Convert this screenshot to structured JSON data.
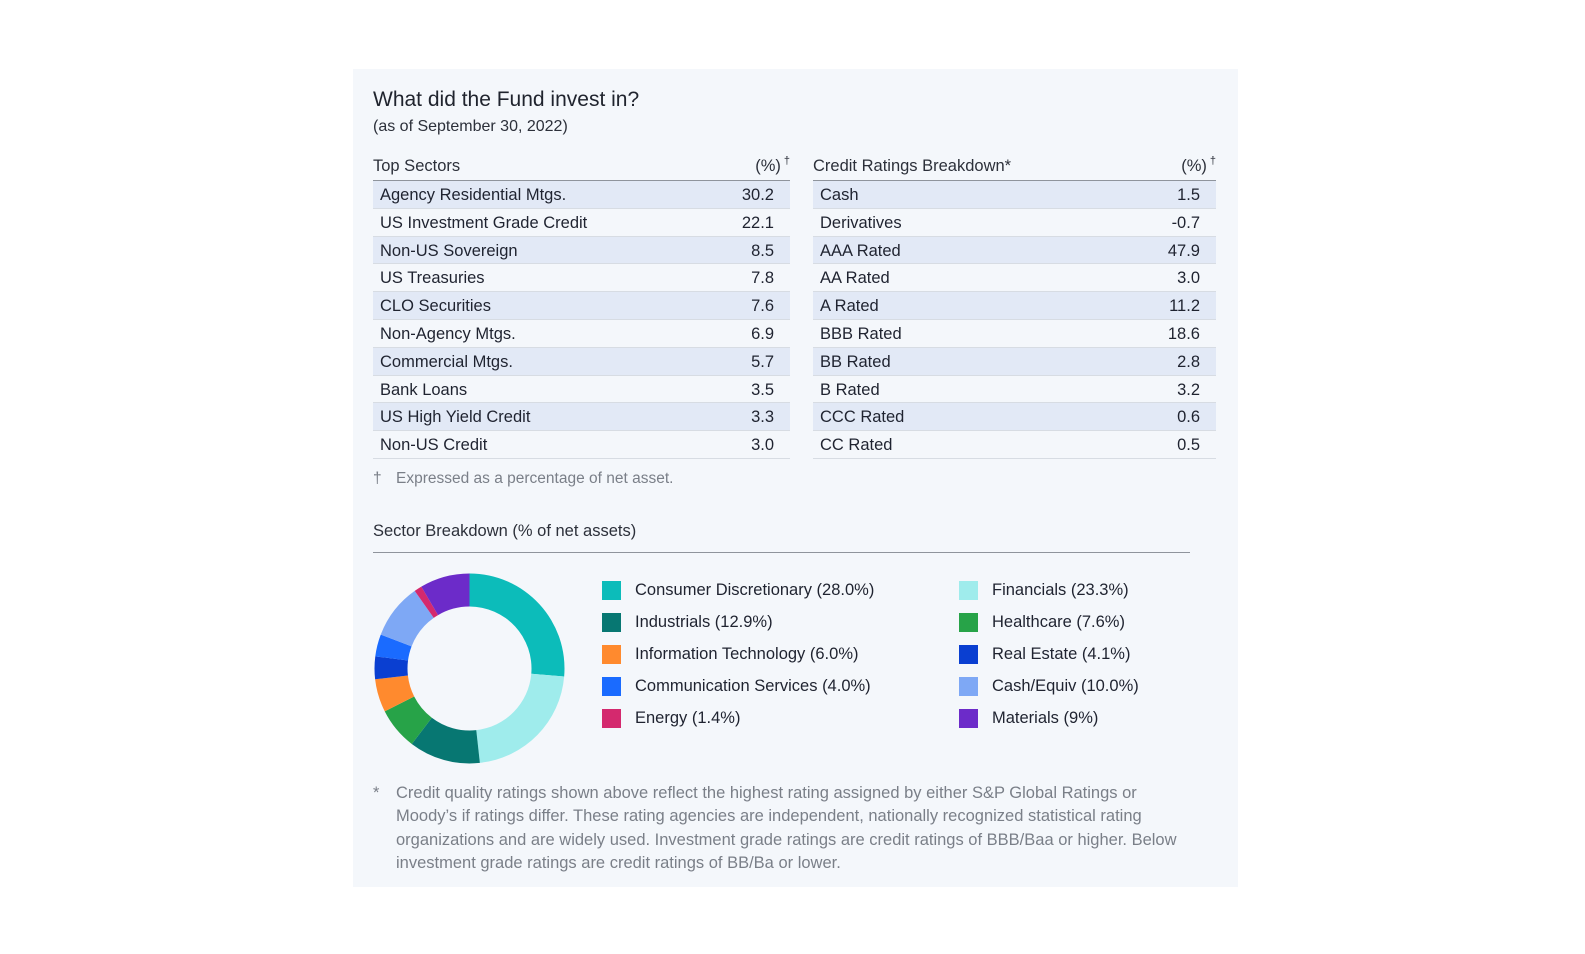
{
  "title": "What did the Fund invest in?",
  "subtitle": "(as of September 30, 2022)",
  "top_sectors": {
    "header_label": "Top Sectors",
    "header_pct": "(%)",
    "header_mark": "†",
    "rows": [
      {
        "label": "Agency Residential Mtgs.",
        "value": "30.2"
      },
      {
        "label": "US Investment Grade Credit",
        "value": "22.1"
      },
      {
        "label": "Non-US Sovereign",
        "value": "8.5"
      },
      {
        "label": "US Treasuries",
        "value": "7.8"
      },
      {
        "label": "CLO Securities",
        "value": "7.6"
      },
      {
        "label": "Non-Agency Mtgs.",
        "value": "6.9"
      },
      {
        "label": "Commercial Mtgs.",
        "value": "5.7"
      },
      {
        "label": "Bank Loans",
        "value": "3.5"
      },
      {
        "label": "US High Yield Credit",
        "value": "3.3"
      },
      {
        "label": "Non-US Credit",
        "value": "3.0"
      }
    ]
  },
  "credit_ratings": {
    "header_label": "Credit Ratings Breakdown*",
    "header_pct": "(%)",
    "header_mark": "†",
    "rows": [
      {
        "label": "Cash",
        "value": "1.5"
      },
      {
        "label": "Derivatives",
        "value": "-0.7"
      },
      {
        "label": "AAA Rated",
        "value": "47.9"
      },
      {
        "label": "AA Rated",
        "value": "3.0"
      },
      {
        "label": "A Rated",
        "value": "11.2"
      },
      {
        "label": "BBB Rated",
        "value": "18.6"
      },
      {
        "label": "BB Rated",
        "value": "2.8"
      },
      {
        "label": "B Rated",
        "value": "3.2"
      },
      {
        "label": "CCC Rated",
        "value": "0.6"
      },
      {
        "label": "CC Rated",
        "value": "0.5"
      }
    ]
  },
  "footnote_dagger": {
    "symbol": "†",
    "text": "Expressed as a percentage of net asset."
  },
  "sector_breakdown_title": "Sector Breakdown (% of net assets)",
  "chart_data": {
    "type": "pie",
    "title": "Sector Breakdown (% of net assets)",
    "donut": true,
    "slices": [
      {
        "label": "Consumer Discretionary (28.0%)",
        "name": "Consumer Discretionary",
        "value": 28.0,
        "color": "#0cbcba"
      },
      {
        "label": "Financials (23.3%)",
        "name": "Financials",
        "value": 23.3,
        "color": "#9fecec"
      },
      {
        "label": "Industrials (12.9%)",
        "name": "Industrials",
        "value": 12.9,
        "color": "#077772"
      },
      {
        "label": "Healthcare (7.6%)",
        "name": "Healthcare",
        "value": 7.6,
        "color": "#27a348"
      },
      {
        "label": "Information Technology (6.0%)",
        "name": "Information Technology",
        "value": 6.0,
        "color": "#ff8a2e"
      },
      {
        "label": "Real Estate (4.1%)",
        "name": "Real Estate",
        "value": 4.1,
        "color": "#0a3fd1"
      },
      {
        "label": "Communication Services (4.0%)",
        "name": "Communication Services",
        "value": 4.0,
        "color": "#1a6bff"
      },
      {
        "label": "Cash/Equiv (10.0%)",
        "name": "Cash/Equiv",
        "value": 10.0,
        "color": "#7ea8f5"
      },
      {
        "label": "Energy (1.4%)",
        "name": "Energy",
        "value": 1.4,
        "color": "#d4296e"
      },
      {
        "label": "Materials (9%)",
        "name": "Materials",
        "value": 9.0,
        "color": "#6c2bc9"
      }
    ],
    "chart_order": [
      "Consumer Discretionary",
      "Financials",
      "Industrials",
      "Healthcare",
      "Information Technology",
      "Real Estate",
      "Communication Services",
      "Cash/Equiv",
      "Energy",
      "Materials"
    ],
    "legend_columns": [
      [
        "Consumer Discretionary",
        "Industrials",
        "Information Technology",
        "Communication Services",
        "Energy"
      ],
      [
        "Financials",
        "Healthcare",
        "Real Estate",
        "Cash/Equiv",
        "Materials"
      ]
    ],
    "legend_position": "right"
  },
  "footnote_star": {
    "symbol": "*",
    "text": "Credit quality ratings shown above reflect the highest rating assigned by either S&P Global Ratings or Moody’s if ratings differ. These rating agencies are independent, nationally recognized statistical rating organizations and are widely used. Investment grade ratings are credit ratings of BBB/Baa or higher. Below investment grade ratings are credit ratings of BB/Ba or lower."
  }
}
